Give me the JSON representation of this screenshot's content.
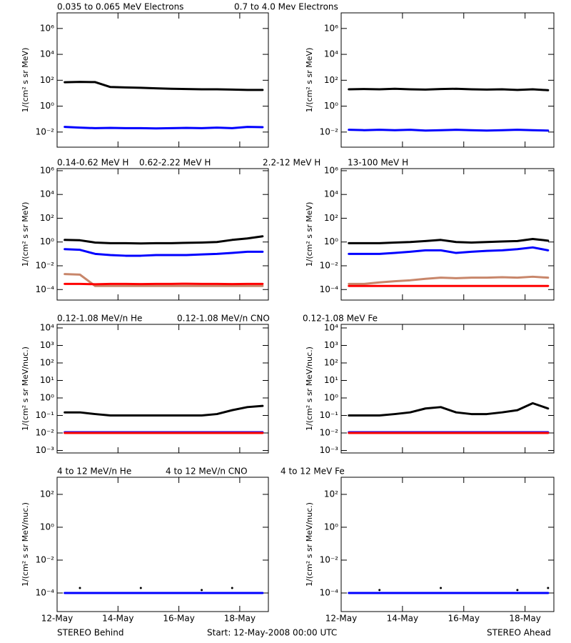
{
  "chart_data": [
    {
      "type": "line",
      "ylabel": "1/(cm² s sr MeV)",
      "log_y": true,
      "x": [
        0.25,
        0.75,
        1.25,
        1.75,
        2.25,
        2.75,
        3.25,
        3.75,
        4.25,
        4.75,
        5.25,
        5.75,
        6.25,
        6.75
      ],
      "xlim": [
        0,
        6.94
      ],
      "xticks": [
        0,
        2,
        4,
        6
      ],
      "ylim": [
        0.00068,
        16000000
      ],
      "yticks": [
        {
          "value": 0.01,
          "label": "10⁻²"
        },
        {
          "value": 1,
          "label": "10⁰"
        },
        {
          "value": 100,
          "label": "10²"
        },
        {
          "value": 10000,
          "label": "10⁴"
        },
        {
          "value": 1000000,
          "label": "10⁶"
        }
      ],
      "series": [
        {
          "name": "0.035 to 0.065 MeV Electrons",
          "color": "#000000",
          "values": [
            70,
            75,
            72,
            30,
            28,
            26,
            24,
            22,
            21,
            20,
            20,
            19,
            18,
            18
          ]
        },
        {
          "name": "0.7 to 4.0 Mev Electrons",
          "color": "#0000ff",
          "values": [
            0.025,
            0.022,
            0.02,
            0.021,
            0.02,
            0.02,
            0.019,
            0.02,
            0.021,
            0.02,
            0.022,
            0.02,
            0.025,
            0.024
          ]
        }
      ]
    },
    {
      "type": "line",
      "ylabel": "1/(cm² s sr MeV)",
      "log_y": true,
      "x": [
        0.25,
        0.75,
        1.25,
        1.75,
        2.25,
        2.75,
        3.25,
        3.75,
        4.25,
        4.75,
        5.25,
        5.75,
        6.25,
        6.75
      ],
      "xlim": [
        0,
        6.94
      ],
      "xticks": [
        0,
        2,
        4,
        6
      ],
      "ylim": [
        0.00068,
        16000000
      ],
      "yticks": [
        {
          "value": 0.01,
          "label": "10⁻²"
        },
        {
          "value": 1,
          "label": "10⁰"
        },
        {
          "value": 100,
          "label": "10²"
        },
        {
          "value": 10000,
          "label": "10⁴"
        },
        {
          "value": 1000000,
          "label": "10⁶"
        }
      ],
      "series": [
        {
          "color": "#000000",
          "values": [
            20,
            21,
            20,
            22,
            20,
            19,
            21,
            22,
            20,
            19,
            20,
            18,
            20,
            17
          ]
        },
        {
          "color": "#0000ff",
          "values": [
            0.015,
            0.014,
            0.015,
            0.014,
            0.015,
            0.013,
            0.014,
            0.015,
            0.014,
            0.013,
            0.014,
            0.015,
            0.014,
            0.013
          ]
        }
      ]
    },
    {
      "type": "line",
      "ylabel": "1/(cm² s sr MeV)",
      "log_y": true,
      "x": [
        0.25,
        0.75,
        1.25,
        1.75,
        2.25,
        2.75,
        3.25,
        3.75,
        4.25,
        4.75,
        5.25,
        5.75,
        6.25,
        6.75
      ],
      "xlim": [
        0,
        6.94
      ],
      "xticks": [
        0,
        2,
        4,
        6
      ],
      "ylim": [
        1.3e-05,
        1500000
      ],
      "yticks": [
        {
          "value": 0.0001,
          "label": "10⁻⁴"
        },
        {
          "value": 0.01,
          "label": "10⁻²"
        },
        {
          "value": 1,
          "label": "10⁰"
        },
        {
          "value": 100,
          "label": "10²"
        },
        {
          "value": 10000,
          "label": "10⁴"
        },
        {
          "value": 1000000,
          "label": "10⁶"
        }
      ],
      "series": [
        {
          "name": "0.14-0.62 MeV H",
          "color": "#000000",
          "values": [
            1.5,
            1.4,
            0.9,
            0.8,
            0.8,
            0.75,
            0.8,
            0.8,
            0.85,
            0.9,
            1.0,
            1.5,
            2,
            3
          ]
        },
        {
          "name": "0.62-2.22 MeV H",
          "color": "#0000ff",
          "values": [
            0.25,
            0.22,
            0.1,
            0.08,
            0.07,
            0.07,
            0.08,
            0.08,
            0.08,
            0.09,
            0.1,
            0.12,
            0.15,
            0.15
          ]
        },
        {
          "name": "2.2-12 MeV H",
          "color": "#c8866a",
          "values": [
            0.002,
            0.0018,
            0.0002,
            0.0002,
            0.0002,
            0.0002,
            0.0002,
            0.0002,
            0.0002,
            0.0002,
            0.0002,
            0.0002,
            0.0002,
            0.0002
          ]
        },
        {
          "name": "13-100 MeV H",
          "color": "#ff0000",
          "values": [
            0.0003,
            0.0003,
            0.00028,
            0.0003,
            0.0003,
            0.00029,
            0.0003,
            0.0003,
            0.00031,
            0.0003,
            0.0003,
            0.00029,
            0.0003,
            0.0003
          ]
        }
      ]
    },
    {
      "type": "line",
      "ylabel": "1/(cm² s sr MeV)",
      "log_y": true,
      "x": [
        0.25,
        0.75,
        1.25,
        1.75,
        2.25,
        2.75,
        3.25,
        3.75,
        4.25,
        4.75,
        5.25,
        5.75,
        6.25,
        6.75
      ],
      "xlim": [
        0,
        6.94
      ],
      "xticks": [
        0,
        2,
        4,
        6
      ],
      "ylim": [
        1.3e-05,
        1500000
      ],
      "yticks": [
        {
          "value": 0.0001,
          "label": "10⁻⁴"
        },
        {
          "value": 0.01,
          "label": "10⁻²"
        },
        {
          "value": 1,
          "label": "10⁰"
        },
        {
          "value": 100,
          "label": "10²"
        },
        {
          "value": 10000,
          "label": "10⁴"
        },
        {
          "value": 1000000,
          "label": "10⁶"
        }
      ],
      "series": [
        {
          "color": "#000000",
          "values": [
            0.8,
            0.8,
            0.8,
            0.9,
            1.0,
            1.2,
            1.5,
            1.0,
            0.9,
            1.0,
            1.1,
            1.2,
            1.8,
            1.3
          ]
        },
        {
          "color": "#0000ff",
          "values": [
            0.1,
            0.1,
            0.1,
            0.12,
            0.15,
            0.2,
            0.2,
            0.12,
            0.15,
            0.18,
            0.2,
            0.25,
            0.35,
            0.2
          ]
        },
        {
          "color": "#c8866a",
          "values": [
            0.0003,
            0.0003,
            0.0004,
            0.0005,
            0.0006,
            0.0008,
            0.001,
            0.0009,
            0.001,
            0.001,
            0.0011,
            0.001,
            0.0012,
            0.001
          ]
        },
        {
          "color": "#ff0000",
          "values": [
            0.0002,
            0.0002,
            0.0002,
            0.0002,
            0.0002,
            0.0002,
            0.0002,
            0.0002,
            0.0002,
            0.0002,
            0.0002,
            0.0002,
            0.0002,
            0.0002
          ]
        }
      ]
    },
    {
      "type": "line",
      "ylabel": "1/(cm² s sr MeV/nuc.)",
      "log_y": true,
      "x": [
        0.25,
        0.75,
        1.25,
        1.75,
        2.25,
        2.75,
        3.25,
        3.75,
        4.25,
        4.75,
        5.25,
        5.75,
        6.25,
        6.75
      ],
      "xlim": [
        0,
        6.94
      ],
      "xticks": [
        0,
        2,
        4,
        6
      ],
      "ylim": [
        0.00072,
        16000
      ],
      "yticks": [
        {
          "value": 0.001,
          "label": "10⁻³"
        },
        {
          "value": 0.01,
          "label": "10⁻²"
        },
        {
          "value": 0.1,
          "label": "10⁻¹"
        },
        {
          "value": 1,
          "label": "10⁰"
        },
        {
          "value": 10,
          "label": "10¹"
        },
        {
          "value": 100,
          "label": "10²"
        },
        {
          "value": 1000,
          "label": "10³"
        },
        {
          "value": 10000,
          "label": "10⁴"
        }
      ],
      "series": [
        {
          "name": "0.12-1.08 MeV/n He",
          "color": "#000000",
          "values": [
            0.15,
            0.15,
            0.12,
            0.1,
            0.1,
            0.1,
            0.1,
            0.1,
            0.1,
            0.1,
            0.12,
            0.2,
            0.3,
            0.35
          ]
        },
        {
          "name": "0.12-1.08 MeV/n CNO",
          "color": "#0000ff",
          "values": [
            0.011,
            0.011,
            0.011,
            0.011,
            0.011,
            0.011,
            0.011,
            0.011,
            0.011,
            0.011,
            0.011,
            0.011,
            0.011,
            0.011
          ]
        },
        {
          "name": "0.12-1.08 MeV Fe",
          "color": "#ff0000",
          "values": [
            0.01,
            0.01,
            0.01,
            0.01,
            0.01,
            0.01,
            0.01,
            0.01,
            0.01,
            0.01,
            0.01,
            0.01,
            0.01,
            0.01
          ]
        }
      ]
    },
    {
      "type": "line",
      "ylabel": "1/(cm² s sr MeV/nuc.)",
      "log_y": true,
      "x": [
        0.25,
        0.75,
        1.25,
        1.75,
        2.25,
        2.75,
        3.25,
        3.75,
        4.25,
        4.75,
        5.25,
        5.75,
        6.25,
        6.75
      ],
      "xlim": [
        0,
        6.94
      ],
      "xticks": [
        0,
        2,
        4,
        6
      ],
      "ylim": [
        0.00072,
        16000
      ],
      "yticks": [
        {
          "value": 0.001,
          "label": "10⁻³"
        },
        {
          "value": 0.01,
          "label": "10⁻²"
        },
        {
          "value": 0.1,
          "label": "10⁻¹"
        },
        {
          "value": 1,
          "label": "10⁰"
        },
        {
          "value": 10,
          "label": "10¹"
        },
        {
          "value": 100,
          "label": "10²"
        },
        {
          "value": 1000,
          "label": "10³"
        },
        {
          "value": 10000,
          "label": "10⁴"
        }
      ],
      "series": [
        {
          "color": "#000000",
          "values": [
            0.1,
            0.1,
            0.1,
            0.12,
            0.15,
            0.25,
            0.3,
            0.15,
            0.12,
            0.12,
            0.15,
            0.2,
            0.5,
            0.25
          ]
        },
        {
          "color": "#0000ff",
          "values": [
            0.011,
            0.011,
            0.011,
            0.011,
            0.011,
            0.011,
            0.011,
            0.011,
            0.011,
            0.011,
            0.011,
            0.011,
            0.011,
            0.011
          ]
        },
        {
          "color": "#ff0000",
          "values": [
            0.01,
            0.01,
            0.01,
            0.01,
            0.01,
            0.01,
            0.01,
            0.01,
            0.01,
            0.01,
            0.01,
            0.01,
            0.01,
            0.01
          ]
        }
      ]
    },
    {
      "type": "line",
      "ylabel": "1/(cm² s sr MeV/nuc.)",
      "log_y": true,
      "x": [
        0.25,
        0.75,
        1.25,
        1.75,
        2.25,
        2.75,
        3.25,
        3.75,
        4.25,
        4.75,
        5.25,
        5.75,
        6.25,
        6.75
      ],
      "xlim": [
        0,
        6.94
      ],
      "xticks": [
        {
          "value": 0,
          "label": "12-May"
        },
        {
          "value": 2,
          "label": "14-May"
        },
        {
          "value": 4,
          "label": "16-May"
        },
        {
          "value": 6,
          "label": "18-May"
        }
      ],
      "ylim": [
        7.4e-06,
        1100
      ],
      "yticks": [
        {
          "value": 0.0001,
          "label": "10⁻⁴"
        },
        {
          "value": 0.01,
          "label": "10⁻²"
        },
        {
          "value": 1,
          "label": "10⁰"
        },
        {
          "value": 100,
          "label": "10²"
        }
      ],
      "series": [
        {
          "name": "4 to 12 MeV/n He",
          "color": "#000000",
          "values": [
            null,
            0.0002,
            null,
            null,
            null,
            0.0002,
            null,
            null,
            null,
            0.00015,
            null,
            0.0002,
            null,
            null
          ]
        },
        {
          "name": "4 to 12 MeV/n CNO",
          "color": "#0000ff",
          "values": [
            0.0001,
            0.0001,
            0.0001,
            0.0001,
            0.0001,
            0.0001,
            0.0001,
            0.0001,
            0.0001,
            0.0001,
            0.0001,
            0.0001,
            0.0001,
            0.0001
          ]
        },
        {
          "name": "4 to 12 MeV Fe",
          "color": "#ff0000",
          "values": [
            null,
            null,
            null,
            null,
            null,
            null,
            null,
            null,
            null,
            null,
            null,
            null,
            null,
            null
          ]
        }
      ]
    },
    {
      "type": "line",
      "ylabel": "1/(cm² s sr MeV/nuc.)",
      "log_y": true,
      "x": [
        0.25,
        0.75,
        1.25,
        1.75,
        2.25,
        2.75,
        3.25,
        3.75,
        4.25,
        4.75,
        5.25,
        5.75,
        6.25,
        6.75
      ],
      "xlim": [
        0,
        6.94
      ],
      "xticks": [
        {
          "value": 0,
          "label": "12-May"
        },
        {
          "value": 2,
          "label": "14-May"
        },
        {
          "value": 4,
          "label": "16-May"
        },
        {
          "value": 6,
          "label": "18-May"
        }
      ],
      "ylim": [
        7.4e-06,
        1100
      ],
      "yticks": [
        {
          "value": 0.0001,
          "label": "10⁻⁴"
        },
        {
          "value": 0.01,
          "label": "10⁻²"
        },
        {
          "value": 1,
          "label": "10⁰"
        },
        {
          "value": 100,
          "label": "10²"
        }
      ],
      "series": [
        {
          "color": "#000000",
          "values": [
            null,
            null,
            0.00015,
            null,
            null,
            null,
            0.0002,
            null,
            null,
            null,
            null,
            0.00015,
            null,
            0.0002
          ]
        },
        {
          "color": "#0000ff",
          "values": [
            0.0001,
            0.0001,
            0.0001,
            0.0001,
            0.0001,
            0.0001,
            0.0001,
            0.0001,
            0.0001,
            0.0001,
            0.0001,
            0.0001,
            0.0001,
            0.0001
          ]
        },
        {
          "color": "#ff0000",
          "values": [
            null,
            null,
            null,
            null,
            null,
            null,
            null,
            null,
            null,
            null,
            null,
            null,
            null,
            null
          ]
        }
      ]
    }
  ],
  "footer": {
    "left": "STEREO Behind",
    "center": "Start: 12-May-2008 00:00 UTC",
    "right": "STEREO Ahead"
  }
}
